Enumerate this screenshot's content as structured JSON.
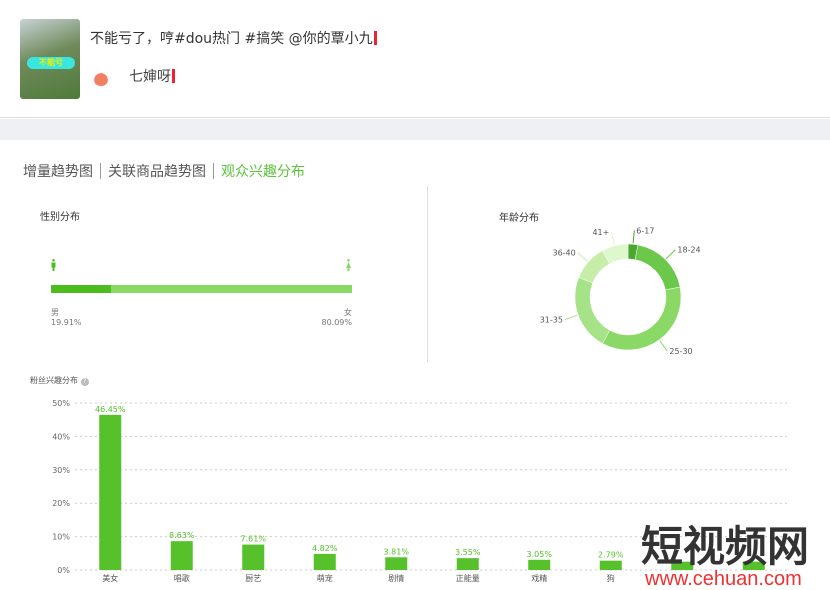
{
  "video": {
    "title": "不能亏了，哼#dou热门 #搞笑 @你的覃小九",
    "thumbnail_caption": "不能亏",
    "author": "七婶呀"
  },
  "tabs": [
    {
      "label": "增量趋势图",
      "active": false
    },
    {
      "label": "关联商品趋势图",
      "active": false
    },
    {
      "label": "观众兴趣分布",
      "active": true
    }
  ],
  "gender": {
    "title": "性别分布",
    "male_label": "男",
    "male_value": "19.91%",
    "male_pct": 19.91,
    "female_label": "女",
    "female_value": "80.09%",
    "female_pct": 80.09,
    "colors": {
      "male": "#4cbc1f",
      "female": "#8ad966"
    }
  },
  "age": {
    "title": "年龄分布",
    "segments": [
      {
        "label": "6-17",
        "pct": 3,
        "color": "#4aa832"
      },
      {
        "label": "18-24",
        "pct": 19,
        "color": "#6cc84a"
      },
      {
        "label": "25-30",
        "pct": 36,
        "color": "#8ad966"
      },
      {
        "label": "31-35",
        "pct": 23,
        "color": "#a6e288"
      },
      {
        "label": "36-40",
        "pct": 11,
        "color": "#c6eea8"
      },
      {
        "label": "41+",
        "pct": 8,
        "color": "#dff7cc"
      }
    ]
  },
  "interest": {
    "title": "粉丝兴趣分布",
    "help_icon": "info-circle-icon",
    "chart_data": {
      "type": "bar",
      "ylim": [
        0,
        50
      ],
      "yticks": [
        "0%",
        "10%",
        "20%",
        "30%",
        "40%",
        "50%"
      ],
      "grid": true,
      "categories": [
        "美女",
        "唱歌",
        "厨艺",
        "萌宠",
        "剧情",
        "正能量",
        "戏精",
        "狗",
        "",
        ""
      ],
      "values": [
        46.45,
        8.63,
        7.61,
        4.82,
        3.81,
        3.55,
        3.05,
        2.79,
        2.5,
        2.5
      ],
      "labels": [
        "46.45%",
        "8.63%",
        "7.61%",
        "4.82%",
        "3.81%",
        "3.55%",
        "3.05%",
        "2.79%",
        "",
        ""
      ],
      "color": "#56c12a"
    }
  },
  "watermark": {
    "text": "短视频网",
    "url": "www.cehuan.com"
  }
}
